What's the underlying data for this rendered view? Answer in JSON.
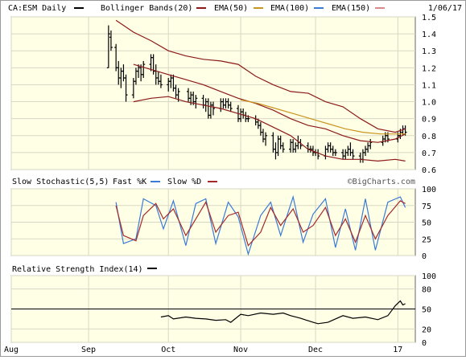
{
  "chart_data": [
    {
      "panel": "price",
      "type": "ohlc",
      "title": "CA:ESM Daily",
      "date_label": "1/06/17",
      "legend": [
        {
          "label": "Bollinger Bands(20)",
          "color": "#8b1a1a"
        },
        {
          "label": "EMA(50)",
          "color": "#c9951f"
        },
        {
          "label": "EMA(100)",
          "color": "#3a7bd5"
        },
        {
          "label": "EMA(150)",
          "color": "#d98a8a"
        }
      ],
      "ylim": [
        0.6,
        1.5
      ],
      "yticks": [
        "1.5",
        "1.4",
        "1.3",
        "1.2",
        "1.1",
        "1.0",
        "0.9",
        "0.8",
        "0.7",
        "0.6"
      ],
      "grid": true,
      "x_range": [
        "2016-08-01",
        "2017-01-10"
      ],
      "xticks": [
        {
          "label": "Aug",
          "date": "2016-08-01"
        },
        {
          "label": "Sep",
          "date": "2016-09-01"
        },
        {
          "label": "Oct",
          "date": "2016-10-03"
        },
        {
          "label": "Nov",
          "date": "2016-11-01"
        },
        {
          "label": "Dec",
          "date": "2016-12-01"
        },
        {
          "label": "17",
          "date": "2017-01-03"
        }
      ],
      "price_x": [
        "2016-09-09",
        "2016-09-10",
        "2016-09-12",
        "2016-09-13",
        "2016-09-14",
        "2016-09-15",
        "2016-09-16",
        "2016-09-19",
        "2016-09-20",
        "2016-09-21",
        "2016-09-22",
        "2016-09-23",
        "2016-09-26",
        "2016-09-27",
        "2016-09-28",
        "2016-09-29",
        "2016-09-30",
        "2016-10-03",
        "2016-10-04",
        "2016-10-05",
        "2016-10-06",
        "2016-10-07",
        "2016-10-11",
        "2016-10-12",
        "2016-10-13",
        "2016-10-14",
        "2016-10-17",
        "2016-10-18",
        "2016-10-19",
        "2016-10-20",
        "2016-10-21",
        "2016-10-24",
        "2016-10-25",
        "2016-10-26",
        "2016-10-27",
        "2016-10-28",
        "2016-10-31",
        "2016-11-01",
        "2016-11-02",
        "2016-11-03",
        "2016-11-04",
        "2016-11-07",
        "2016-11-08",
        "2016-11-09",
        "2016-11-10",
        "2016-11-11",
        "2016-11-14",
        "2016-11-15",
        "2016-11-16",
        "2016-11-17",
        "2016-11-18",
        "2016-11-21",
        "2016-11-22",
        "2016-11-23",
        "2016-11-24",
        "2016-11-25",
        "2016-11-28",
        "2016-11-29",
        "2016-11-30",
        "2016-12-01",
        "2016-12-02",
        "2016-12-05",
        "2016-12-06",
        "2016-12-07",
        "2016-12-08",
        "2016-12-09",
        "2016-12-12",
        "2016-12-13",
        "2016-12-14",
        "2016-12-15",
        "2016-12-16",
        "2016-12-19",
        "2016-12-20",
        "2016-12-21",
        "2016-12-22",
        "2016-12-23",
        "2016-12-28",
        "2016-12-29",
        "2016-12-30",
        "2017-01-03",
        "2017-01-04",
        "2017-01-05",
        "2017-01-06"
      ],
      "bars": [
        [
          1.2,
          1.45,
          1.2,
          1.4
        ],
        [
          1.38,
          1.42,
          1.3,
          1.32
        ],
        [
          1.32,
          1.34,
          1.18,
          1.2
        ],
        [
          1.2,
          1.24,
          1.1,
          1.14
        ],
        [
          1.14,
          1.2,
          1.08,
          1.18
        ],
        [
          1.18,
          1.22,
          1.12,
          1.14
        ],
        [
          1.14,
          1.16,
          1.0,
          1.04
        ],
        [
          1.04,
          1.14,
          1.02,
          1.12
        ],
        [
          1.12,
          1.2,
          1.1,
          1.18
        ],
        [
          1.18,
          1.22,
          1.14,
          1.2
        ],
        [
          1.2,
          1.22,
          1.12,
          1.16
        ],
        [
          1.16,
          1.24,
          1.14,
          1.22
        ],
        [
          1.22,
          1.28,
          1.18,
          1.26
        ],
        [
          1.26,
          1.28,
          1.16,
          1.18
        ],
        [
          1.18,
          1.22,
          1.1,
          1.14
        ],
        [
          1.14,
          1.18,
          1.1,
          1.12
        ],
        [
          1.12,
          1.16,
          1.08,
          1.1
        ],
        [
          1.1,
          1.14,
          1.06,
          1.12
        ],
        [
          1.12,
          1.16,
          1.08,
          1.14
        ],
        [
          1.14,
          1.16,
          1.06,
          1.08
        ],
        [
          1.08,
          1.1,
          1.02,
          1.04
        ],
        [
          1.04,
          1.08,
          1.0,
          1.06
        ],
        [
          1.06,
          1.08,
          1.0,
          1.02
        ],
        [
          1.02,
          1.06,
          0.98,
          1.04
        ],
        [
          1.04,
          1.06,
          0.98,
          1.0
        ],
        [
          1.0,
          1.04,
          0.96,
          1.02
        ],
        [
          1.02,
          1.04,
          0.96,
          0.98
        ],
        [
          0.98,
          1.02,
          0.94,
          1.0
        ],
        [
          1.0,
          1.02,
          0.9,
          0.92
        ],
        [
          0.92,
          1.0,
          0.9,
          0.98
        ],
        [
          0.98,
          1.0,
          0.92,
          0.96
        ],
        [
          0.96,
          1.02,
          0.94,
          1.0
        ],
        [
          1.0,
          1.02,
          0.96,
          0.98
        ],
        [
          0.98,
          1.02,
          0.96,
          1.0
        ],
        [
          1.0,
          1.02,
          0.96,
          0.98
        ],
        [
          0.98,
          1.0,
          0.94,
          0.96
        ],
        [
          0.96,
          0.98,
          0.88,
          0.9
        ],
        [
          0.9,
          0.96,
          0.88,
          0.94
        ],
        [
          0.94,
          0.96,
          0.9,
          0.92
        ],
        [
          0.92,
          0.94,
          0.88,
          0.9
        ],
        [
          0.9,
          0.92,
          0.88,
          0.9
        ],
        [
          0.9,
          0.92,
          0.86,
          0.88
        ],
        [
          0.88,
          0.9,
          0.84,
          0.86
        ],
        [
          0.86,
          0.88,
          0.8,
          0.82
        ],
        [
          0.82,
          0.84,
          0.76,
          0.78
        ],
        [
          0.78,
          0.82,
          0.74,
          0.8
        ],
        [
          0.8,
          0.82,
          0.7,
          0.72
        ],
        [
          0.72,
          0.76,
          0.66,
          0.7
        ],
        [
          0.7,
          0.8,
          0.68,
          0.78
        ],
        [
          0.78,
          0.8,
          0.72,
          0.74
        ],
        [
          0.74,
          0.76,
          0.7,
          0.72
        ],
        [
          0.72,
          0.78,
          0.7,
          0.76
        ],
        [
          0.76,
          0.78,
          0.7,
          0.72
        ],
        [
          0.72,
          0.76,
          0.7,
          0.74
        ],
        [
          0.74,
          0.8,
          0.72,
          0.76
        ],
        [
          0.76,
          0.78,
          0.72,
          0.74
        ],
        [
          0.74,
          0.76,
          0.7,
          0.72
        ],
        [
          0.72,
          0.74,
          0.7,
          0.72
        ],
        [
          0.72,
          0.74,
          0.68,
          0.7
        ],
        [
          0.7,
          0.72,
          0.68,
          0.7
        ],
        [
          0.7,
          0.72,
          0.66,
          0.68
        ],
        [
          0.68,
          0.74,
          0.66,
          0.72
        ],
        [
          0.72,
          0.76,
          0.7,
          0.74
        ],
        [
          0.74,
          0.76,
          0.7,
          0.72
        ],
        [
          0.72,
          0.74,
          0.68,
          0.7
        ],
        [
          0.7,
          0.72,
          0.68,
          0.7
        ],
        [
          0.7,
          0.72,
          0.66,
          0.68
        ],
        [
          0.68,
          0.72,
          0.66,
          0.7
        ],
        [
          0.7,
          0.74,
          0.68,
          0.72
        ],
        [
          0.72,
          0.76,
          0.68,
          0.7
        ],
        [
          0.7,
          0.72,
          0.66,
          0.68
        ],
        [
          0.68,
          0.7,
          0.64,
          0.66
        ],
        [
          0.66,
          0.72,
          0.64,
          0.7
        ],
        [
          0.7,
          0.74,
          0.68,
          0.72
        ],
        [
          0.72,
          0.76,
          0.7,
          0.74
        ],
        [
          0.74,
          0.78,
          0.72,
          0.76
        ],
        [
          0.76,
          0.8,
          0.74,
          0.78
        ],
        [
          0.78,
          0.82,
          0.76,
          0.8
        ],
        [
          0.8,
          0.82,
          0.76,
          0.78
        ],
        [
          0.78,
          0.82,
          0.76,
          0.8
        ],
        [
          0.8,
          0.84,
          0.78,
          0.82
        ],
        [
          0.82,
          0.86,
          0.8,
          0.84
        ],
        [
          0.84,
          0.86,
          0.8,
          0.82
        ]
      ],
      "bb_upper": [
        [
          "2016-09-12",
          1.48
        ],
        [
          "2016-09-19",
          1.41
        ],
        [
          "2016-09-26",
          1.36
        ],
        [
          "2016-10-03",
          1.3
        ],
        [
          "2016-10-10",
          1.27
        ],
        [
          "2016-10-17",
          1.25
        ],
        [
          "2016-10-24",
          1.24
        ],
        [
          "2016-10-31",
          1.22
        ],
        [
          "2016-11-07",
          1.15
        ],
        [
          "2016-11-14",
          1.1
        ],
        [
          "2016-11-21",
          1.06
        ],
        [
          "2016-11-28",
          1.05
        ],
        [
          "2016-12-05",
          1.0
        ],
        [
          "2016-12-12",
          0.97
        ],
        [
          "2016-12-19",
          0.9
        ],
        [
          "2016-12-26",
          0.84
        ],
        [
          "2017-01-02",
          0.82
        ],
        [
          "2017-01-06",
          0.84
        ]
      ],
      "bb_middle": [
        [
          "2016-09-19",
          1.22
        ],
        [
          "2016-09-26",
          1.19
        ],
        [
          "2016-10-03",
          1.16
        ],
        [
          "2016-10-10",
          1.13
        ],
        [
          "2016-10-17",
          1.1
        ],
        [
          "2016-10-24",
          1.06
        ],
        [
          "2016-10-31",
          1.02
        ],
        [
          "2016-11-07",
          0.99
        ],
        [
          "2016-11-14",
          0.95
        ],
        [
          "2016-11-21",
          0.9
        ],
        [
          "2016-11-28",
          0.86
        ],
        [
          "2016-12-05",
          0.84
        ],
        [
          "2016-12-12",
          0.8
        ],
        [
          "2016-12-19",
          0.77
        ],
        [
          "2016-12-26",
          0.76
        ],
        [
          "2017-01-02",
          0.78
        ],
        [
          "2017-01-06",
          0.81
        ]
      ],
      "bb_lower": [
        [
          "2016-09-19",
          1.0
        ],
        [
          "2016-09-26",
          1.02
        ],
        [
          "2016-10-03",
          1.03
        ],
        [
          "2016-10-10",
          1.0
        ],
        [
          "2016-10-17",
          0.98
        ],
        [
          "2016-10-24",
          0.96
        ],
        [
          "2016-10-31",
          0.93
        ],
        [
          "2016-11-07",
          0.9
        ],
        [
          "2016-11-14",
          0.85
        ],
        [
          "2016-11-21",
          0.8
        ],
        [
          "2016-11-28",
          0.72
        ],
        [
          "2016-12-05",
          0.68
        ],
        [
          "2016-12-12",
          0.66
        ],
        [
          "2016-12-19",
          0.66
        ],
        [
          "2016-12-26",
          0.65
        ],
        [
          "2017-01-02",
          0.66
        ],
        [
          "2017-01-06",
          0.65
        ]
      ],
      "ema50": [
        [
          "2016-11-01",
          1.01
        ],
        [
          "2016-11-08",
          0.99
        ],
        [
          "2016-11-15",
          0.96
        ],
        [
          "2016-11-22",
          0.93
        ],
        [
          "2016-11-29",
          0.9
        ],
        [
          "2016-12-06",
          0.87
        ],
        [
          "2016-12-13",
          0.84
        ],
        [
          "2016-12-20",
          0.82
        ],
        [
          "2016-12-27",
          0.81
        ],
        [
          "2017-01-03",
          0.81
        ],
        [
          "2017-01-06",
          0.81
        ]
      ]
    },
    {
      "panel": "stochastic",
      "type": "line",
      "title": "Slow Stochastic(5,5)",
      "legend": [
        {
          "label": "Fast %K",
          "color": "#3a7bd5"
        },
        {
          "label": "Slow %D",
          "color": "#a52a2a"
        }
      ],
      "watermark": "©BigCharts.com",
      "ylim": [
        0,
        100
      ],
      "yticks": [
        "100",
        "75",
        "50",
        "25",
        "0"
      ],
      "x": [
        "2016-09-12",
        "2016-09-15",
        "2016-09-20",
        "2016-09-23",
        "2016-09-28",
        "2016-10-01",
        "2016-10-05",
        "2016-10-10",
        "2016-10-14",
        "2016-10-18",
        "2016-10-22",
        "2016-10-27",
        "2016-10-31",
        "2016-11-04",
        "2016-11-09",
        "2016-11-13",
        "2016-11-17",
        "2016-11-22",
        "2016-11-26",
        "2016-11-30",
        "2016-12-05",
        "2016-12-09",
        "2016-12-13",
        "2016-12-17",
        "2016-12-21",
        "2016-12-25",
        "2016-12-30",
        "2017-01-04",
        "2017-01-06"
      ],
      "series": [
        {
          "name": "Fast %K",
          "values": [
            80,
            18,
            25,
            85,
            75,
            40,
            82,
            15,
            78,
            85,
            18,
            80,
            58,
            2,
            60,
            80,
            30,
            88,
            20,
            62,
            85,
            12,
            70,
            8,
            85,
            8,
            80,
            88,
            72
          ]
        },
        {
          "name": "Slow %D",
          "values": [
            75,
            30,
            22,
            60,
            78,
            55,
            70,
            30,
            55,
            80,
            35,
            60,
            65,
            15,
            35,
            72,
            45,
            70,
            35,
            45,
            72,
            30,
            55,
            20,
            60,
            25,
            60,
            82,
            78
          ]
        }
      ]
    },
    {
      "panel": "rsi",
      "type": "line",
      "title": "Relative Strength Index(14)",
      "legend": [
        {
          "label": "",
          "color": "#000000"
        }
      ],
      "ylim": [
        0,
        100
      ],
      "yticks": [
        "100",
        "80",
        "50",
        "20",
        "0"
      ],
      "reference_line": 50,
      "x": [
        "2016-09-30",
        "2016-10-03",
        "2016-10-05",
        "2016-10-10",
        "2016-10-14",
        "2016-10-18",
        "2016-10-22",
        "2016-10-26",
        "2016-10-28",
        "2016-11-01",
        "2016-11-04",
        "2016-11-09",
        "2016-11-14",
        "2016-11-18",
        "2016-11-21",
        "2016-11-25",
        "2016-11-30",
        "2016-12-02",
        "2016-12-06",
        "2016-12-12",
        "2016-12-16",
        "2016-12-21",
        "2016-12-26",
        "2016-12-30",
        "2017-01-02",
        "2017-01-04",
        "2017-01-05",
        "2017-01-06"
      ],
      "values": [
        38,
        40,
        35,
        38,
        36,
        35,
        33,
        34,
        30,
        42,
        40,
        44,
        42,
        44,
        40,
        36,
        30,
        28,
        30,
        40,
        36,
        38,
        34,
        40,
        55,
        62,
        56,
        58
      ]
    }
  ]
}
